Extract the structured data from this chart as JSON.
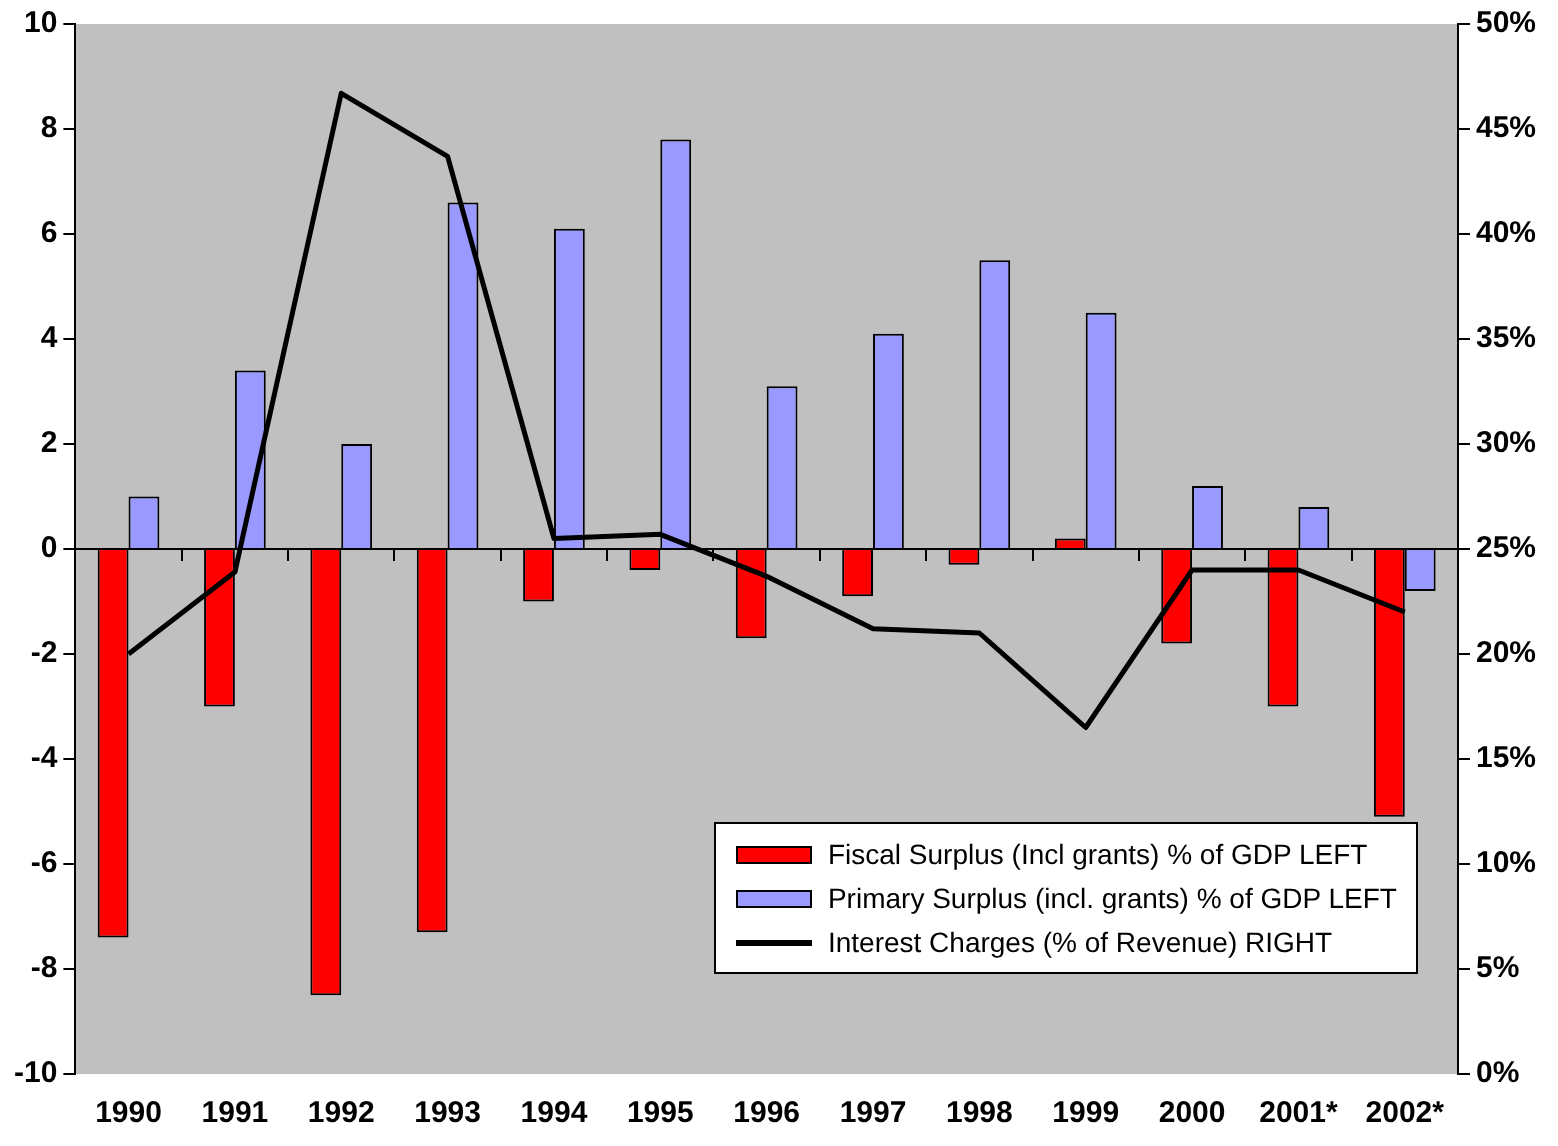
{
  "chart_data": {
    "type": "bar",
    "categories": [
      "1990",
      "1991",
      "1992",
      "1993",
      "1994",
      "1995",
      "1996",
      "1997",
      "1998",
      "1999",
      "2000",
      "2001*",
      "2002*"
    ],
    "series": [
      {
        "name": "Fiscal Surplus (Incl grants) % of GDP LEFT",
        "color": "#ff0000",
        "values": [
          -7.4,
          -3.0,
          -8.5,
          -7.3,
          -1.0,
          -0.4,
          -1.7,
          -0.9,
          -0.3,
          0.2,
          -1.8,
          -3.0,
          -5.1
        ]
      },
      {
        "name": "Primary Surplus (incl. grants) % of GDP LEFT",
        "color": "#9999ff",
        "values": [
          1.0,
          3.4,
          2.0,
          6.6,
          6.1,
          7.8,
          3.1,
          4.1,
          5.5,
          4.5,
          1.2,
          0.8,
          -0.8
        ]
      },
      {
        "name": "Interest Charges (% of Revenue) RIGHT",
        "color": "#000000",
        "type": "line",
        "axis": "y2",
        "values": [
          20.0,
          23.9,
          46.7,
          43.7,
          25.5,
          25.7,
          23.7,
          21.2,
          21.0,
          16.5,
          24.0,
          24.0,
          22.0
        ]
      }
    ],
    "ylim": [
      -10,
      10
    ],
    "yticks": [
      -10,
      -8,
      -6,
      -4,
      -2,
      0,
      2,
      4,
      6,
      8,
      10
    ],
    "y2lim": [
      0,
      50
    ],
    "y2ticks": [
      {
        "value": 0,
        "label": "0%"
      },
      {
        "value": 5,
        "label": "5%"
      },
      {
        "value": 10,
        "label": "10%"
      },
      {
        "value": 15,
        "label": "15%"
      },
      {
        "value": 20,
        "label": "20%"
      },
      {
        "value": 25,
        "label": "25%"
      },
      {
        "value": 30,
        "label": "30%"
      },
      {
        "value": 35,
        "label": "35%"
      },
      {
        "value": 40,
        "label": "40%"
      },
      {
        "value": 45,
        "label": "45%"
      },
      {
        "value": 50,
        "label": "50%"
      }
    ],
    "ref_lines": [
      {
        "axis": "y",
        "value": 0,
        "color": "#000000"
      }
    ],
    "grid": false,
    "legend": "bottom right",
    "marker": "none",
    "line_style": "solid"
  }
}
